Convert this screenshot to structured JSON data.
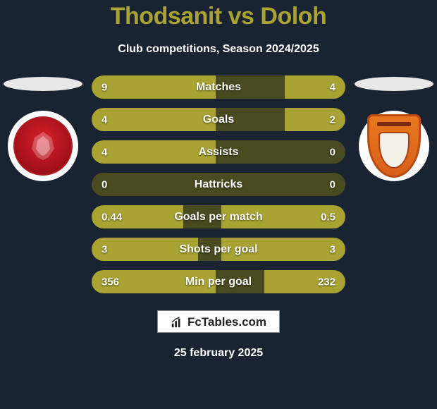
{
  "title": "Thodsanit vs Doloh",
  "subtitle": "Club competitions, Season 2024/2025",
  "colors": {
    "background": "#1a2332",
    "title": "#a8a332",
    "bar_track": "#4a4a20",
    "bar_fill": "#a8a332",
    "text": "#ffffff"
  },
  "stats": [
    {
      "label": "Matches",
      "left_val": "9",
      "right_val": "4",
      "left_pct": 49,
      "right_pct": 24
    },
    {
      "label": "Goals",
      "left_val": "4",
      "right_val": "2",
      "left_pct": 49,
      "right_pct": 24
    },
    {
      "label": "Assists",
      "left_val": "4",
      "right_val": "0",
      "left_pct": 49,
      "right_pct": 0
    },
    {
      "label": "Hattricks",
      "left_val": "0",
      "right_val": "0",
      "left_pct": 0,
      "right_pct": 0
    },
    {
      "label": "Goals per match",
      "left_val": "0.44",
      "right_val": "0.5",
      "left_pct": 36,
      "right_pct": 49
    },
    {
      "label": "Shots per goal",
      "left_val": "3",
      "right_val": "3",
      "left_pct": 42,
      "right_pct": 49
    },
    {
      "label": "Min per goal",
      "left_val": "356",
      "right_val": "232",
      "left_pct": 49,
      "right_pct": 32
    }
  ],
  "brand": "FcTables.com",
  "date": "25 february 2025"
}
